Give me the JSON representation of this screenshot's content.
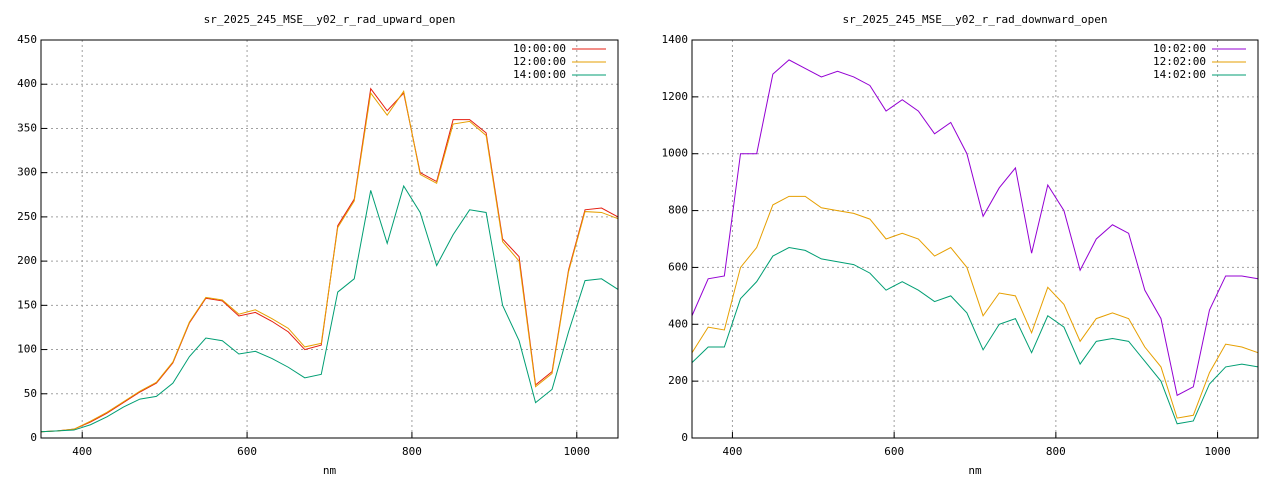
{
  "chart_data": [
    {
      "type": "line",
      "title": "sr_2025_245_MSE__y02_r_rad_upward_open",
      "x_label": "nm",
      "x": [
        350,
        370,
        390,
        410,
        430,
        450,
        470,
        490,
        510,
        530,
        550,
        570,
        590,
        610,
        630,
        650,
        670,
        690,
        710,
        730,
        750,
        770,
        790,
        810,
        830,
        850,
        870,
        890,
        910,
        930,
        950,
        970,
        990,
        1010,
        1030,
        1050
      ],
      "xlim": [
        350,
        1050
      ],
      "xticks": [
        400,
        600,
        800,
        1000
      ],
      "ylim": [
        0,
        450
      ],
      "yticks": [
        0,
        50,
        100,
        150,
        200,
        250,
        300,
        350,
        400,
        450
      ],
      "grid": true,
      "legend": "top-right",
      "series": [
        {
          "name": "10:00:00",
          "color": "#e51e10",
          "values": [
            7,
            8,
            10,
            18,
            28,
            40,
            52,
            62,
            85,
            130,
            158,
            155,
            138,
            142,
            132,
            120,
            100,
            105,
            240,
            270,
            395,
            370,
            390,
            300,
            290,
            360,
            360,
            345,
            225,
            205,
            60,
            75,
            190,
            258,
            260,
            250
          ]
        },
        {
          "name": "12:00:00",
          "color": "#e69f00",
          "values": [
            7,
            8,
            10,
            19,
            29,
            41,
            53,
            63,
            86,
            131,
            159,
            156,
            140,
            145,
            135,
            124,
            103,
            107,
            238,
            268,
            390,
            365,
            392,
            298,
            288,
            355,
            358,
            342,
            222,
            200,
            58,
            73,
            188,
            256,
            255,
            248
          ]
        },
        {
          "name": "14:00:00",
          "color": "#009e73",
          "values": [
            7,
            8,
            9,
            15,
            24,
            35,
            44,
            47,
            62,
            92,
            113,
            110,
            95,
            98,
            90,
            80,
            68,
            72,
            165,
            180,
            280,
            220,
            285,
            255,
            195,
            230,
            258,
            255,
            150,
            110,
            40,
            55,
            120,
            178,
            180,
            168
          ]
        }
      ]
    },
    {
      "type": "line",
      "title": "sr_2025_245_MSE__y02_r_rad_downward_open",
      "x_label": "nm",
      "x": [
        350,
        370,
        390,
        410,
        430,
        450,
        470,
        490,
        510,
        530,
        550,
        570,
        590,
        610,
        630,
        650,
        670,
        690,
        710,
        730,
        750,
        770,
        790,
        810,
        830,
        850,
        870,
        890,
        910,
        930,
        950,
        970,
        990,
        1010,
        1030,
        1050
      ],
      "xlim": [
        350,
        1050
      ],
      "xticks": [
        400,
        600,
        800,
        1000
      ],
      "ylim": [
        0,
        1400
      ],
      "yticks": [
        0,
        200,
        400,
        600,
        800,
        1000,
        1200,
        1400
      ],
      "grid": true,
      "legend": "top-right",
      "series": [
        {
          "name": "10:02:00",
          "color": "#9400d3",
          "values": [
            430,
            560,
            570,
            1000,
            1000,
            1280,
            1330,
            1300,
            1270,
            1290,
            1270,
            1240,
            1150,
            1190,
            1150,
            1070,
            1110,
            1000,
            780,
            880,
            950,
            650,
            890,
            800,
            590,
            700,
            750,
            720,
            520,
            420,
            150,
            180,
            450,
            570,
            570,
            560
          ]
        },
        {
          "name": "12:02:00",
          "color": "#e69f00",
          "values": [
            300,
            390,
            380,
            600,
            670,
            820,
            850,
            850,
            810,
            800,
            790,
            770,
            700,
            720,
            700,
            640,
            670,
            600,
            430,
            510,
            500,
            370,
            530,
            470,
            340,
            420,
            440,
            420,
            320,
            250,
            70,
            80,
            230,
            330,
            320,
            300
          ]
        },
        {
          "name": "14:02:00",
          "color": "#009e73",
          "values": [
            265,
            320,
            320,
            490,
            550,
            640,
            670,
            660,
            630,
            620,
            610,
            580,
            520,
            550,
            520,
            480,
            500,
            440,
            310,
            400,
            420,
            300,
            430,
            390,
            260,
            340,
            350,
            340,
            270,
            200,
            50,
            60,
            190,
            250,
            260,
            250
          ]
        }
      ]
    }
  ]
}
